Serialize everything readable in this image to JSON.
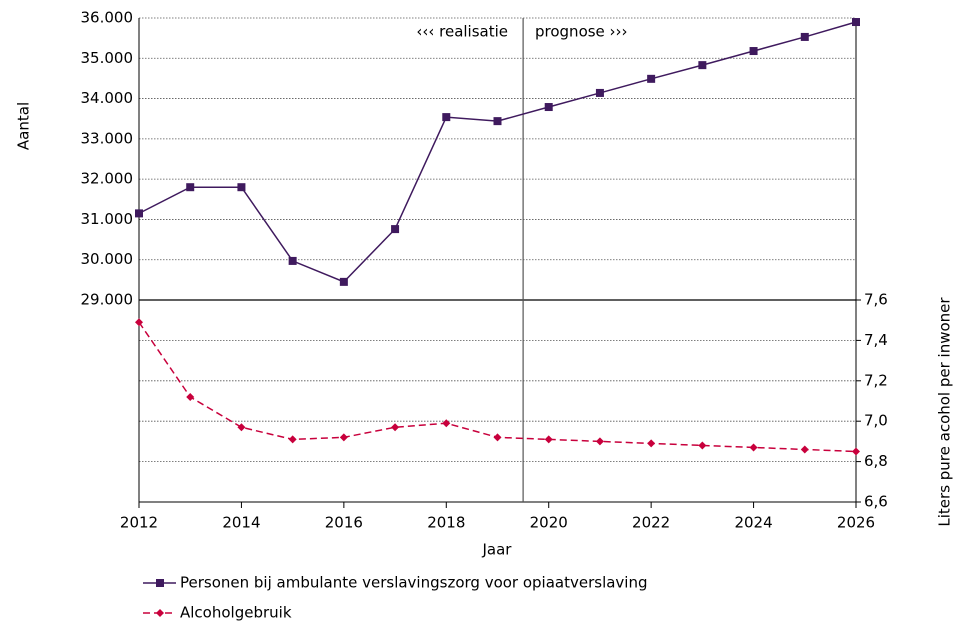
{
  "chart_data": {
    "type": "line",
    "x_label": "Jaar",
    "y_label": "Aantal",
    "y2_label": "Liters pure acohol per inwoner",
    "annotations": [
      "‹‹‹  realisatie",
      "prognose ›››"
    ],
    "divider_x": 2019.5,
    "x": [
      2012,
      2013,
      2014,
      2015,
      2016,
      2017,
      2018,
      2019,
      2020,
      2021,
      2022,
      2023,
      2024,
      2025,
      2026
    ],
    "xlim": [
      2012,
      2026
    ],
    "xticks": [
      2012,
      2014,
      2016,
      2018,
      2020,
      2022,
      2024,
      2026
    ],
    "ylim": [
      29000,
      36000
    ],
    "yticks": [
      {
        "value": 29000,
        "label": "29.000"
      },
      {
        "value": 30000,
        "label": "30.000"
      },
      {
        "value": 31000,
        "label": "31.000"
      },
      {
        "value": 32000,
        "label": "32.000"
      },
      {
        "value": 33000,
        "label": "33.000"
      },
      {
        "value": 34000,
        "label": "34.000"
      },
      {
        "value": 35000,
        "label": "35.000"
      },
      {
        "value": 36000,
        "label": "36.000"
      }
    ],
    "y2lim": [
      6.6,
      7.6
    ],
    "y2ticks": [
      {
        "value": 6.6,
        "label": "6,6"
      },
      {
        "value": 6.8,
        "label": "6,8"
      },
      {
        "value": 7.0,
        "label": "7,0"
      },
      {
        "value": 7.2,
        "label": "7,2"
      },
      {
        "value": 7.4,
        "label": "7,4"
      },
      {
        "value": 7.6,
        "label": "7,6"
      }
    ],
    "grid": true,
    "series": [
      {
        "name": "Personen bij ambulante verslavingszorg voor opiaatverslaving",
        "color": "#3f1a5e",
        "marker": "square",
        "dashed": false,
        "values": [
          31150,
          31800,
          31800,
          29970,
          29450,
          30760,
          33540,
          33440,
          33790,
          34140,
          34490,
          34830,
          35180,
          35530,
          35900
        ]
      },
      {
        "name": "Alcoholgebruik",
        "color": "#c8003c",
        "marker": "diamond",
        "dashed": true,
        "axis": "y2",
        "values": [
          7.49,
          7.12,
          6.97,
          6.91,
          6.92,
          6.97,
          6.99,
          6.92,
          6.91,
          6.9,
          6.89,
          6.88,
          6.87,
          6.86,
          6.85
        ]
      }
    ]
  }
}
